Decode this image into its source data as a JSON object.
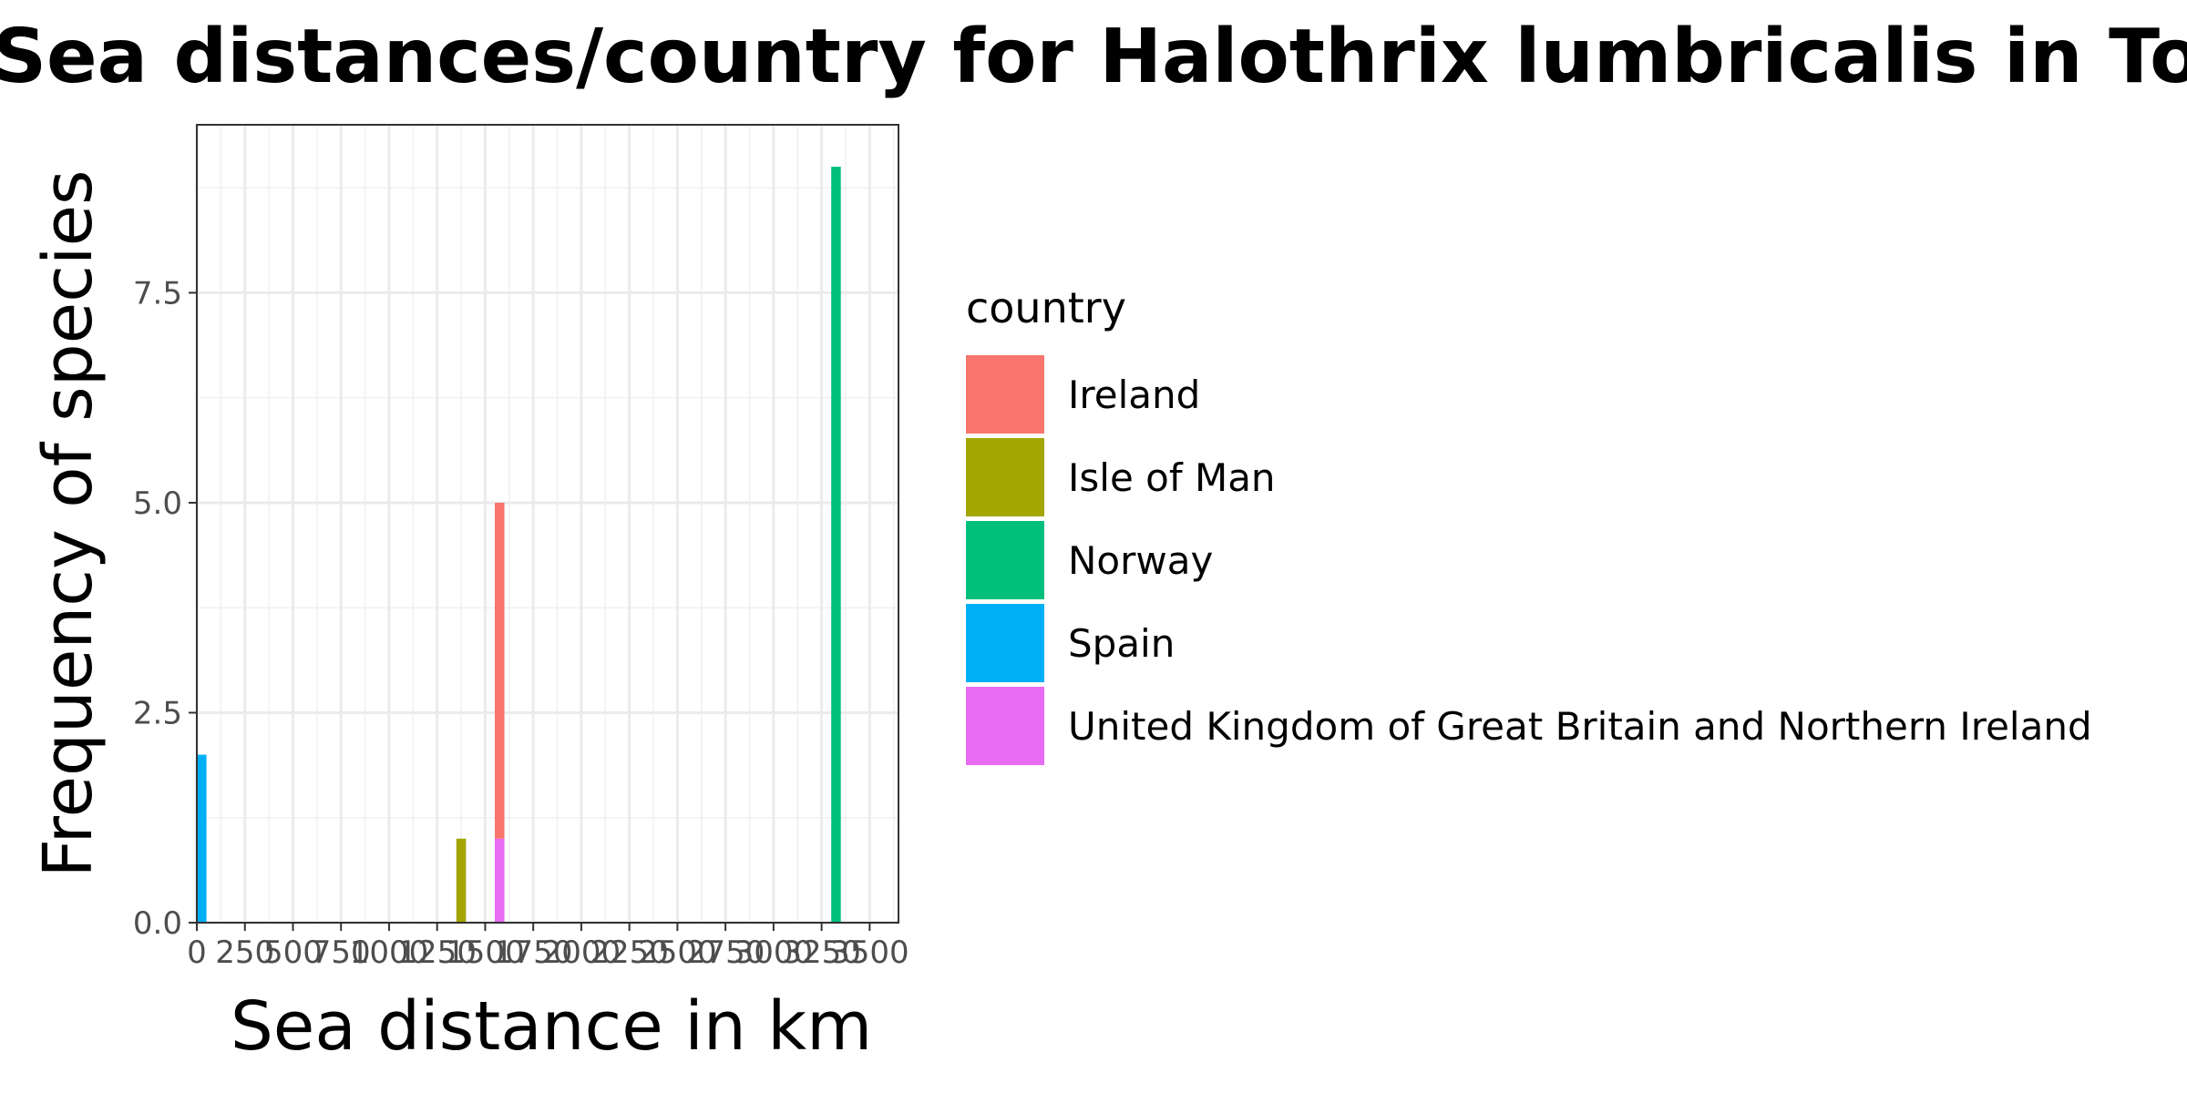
{
  "chart_data": {
    "type": "bar",
    "title": "Sea distances/country for Halothrix lumbricalis in Toralla",
    "xlabel": "Sea distance in km",
    "ylabel": "Frequency of species",
    "xlim": [
      0,
      3650
    ],
    "ylim": [
      0,
      9.5
    ],
    "x_ticks": [
      0,
      250,
      500,
      750,
      1000,
      1250,
      1500,
      1750,
      2000,
      2250,
      2500,
      2750,
      3000,
      3250,
      3500
    ],
    "x_tick_labels": [
      "0",
      "250",
      "500",
      "750",
      "1000",
      "1250",
      "1500",
      "1750",
      "2000",
      "2250",
      "2500",
      "2750",
      "3000",
      "3250",
      "3500"
    ],
    "y_ticks": [
      0,
      2.5,
      5,
      7.5
    ],
    "y_tick_labels": [
      "0.0",
      "2.5",
      "5.0",
      "7.5"
    ],
    "grid": true,
    "stacked": true,
    "bin_width": 50,
    "legend": {
      "title": "country",
      "placement": "right",
      "entries": [
        {
          "name": "Ireland",
          "color": "#F8766D"
        },
        {
          "name": "Isle of Man",
          "color": "#A3A500"
        },
        {
          "name": "Norway",
          "color": "#00BF7D"
        },
        {
          "name": "Spain",
          "color": "#00B0F6"
        },
        {
          "name": "United Kingdom of Great Britain and Northern Ireland",
          "color": "#E76BF3"
        }
      ]
    },
    "bars": [
      {
        "country": "Spain",
        "x_start": 0,
        "x_end": 50,
        "y_start": 0,
        "y_end": 2,
        "color": "#00B0F6"
      },
      {
        "country": "Isle of Man",
        "x_start": 1350,
        "x_end": 1400,
        "y_start": 0,
        "y_end": 1,
        "color": "#A3A500"
      },
      {
        "country": "United Kingdom of Great Britain and Northern Ireland",
        "x_start": 1550,
        "x_end": 1600,
        "y_start": 0,
        "y_end": 1,
        "color": "#E76BF3"
      },
      {
        "country": "Ireland",
        "x_start": 1550,
        "x_end": 1600,
        "y_start": 1,
        "y_end": 5,
        "color": "#F8766D"
      },
      {
        "country": "Norway",
        "x_start": 3300,
        "x_end": 3350,
        "y_start": 0,
        "y_end": 9,
        "color": "#00BF7D"
      }
    ]
  }
}
